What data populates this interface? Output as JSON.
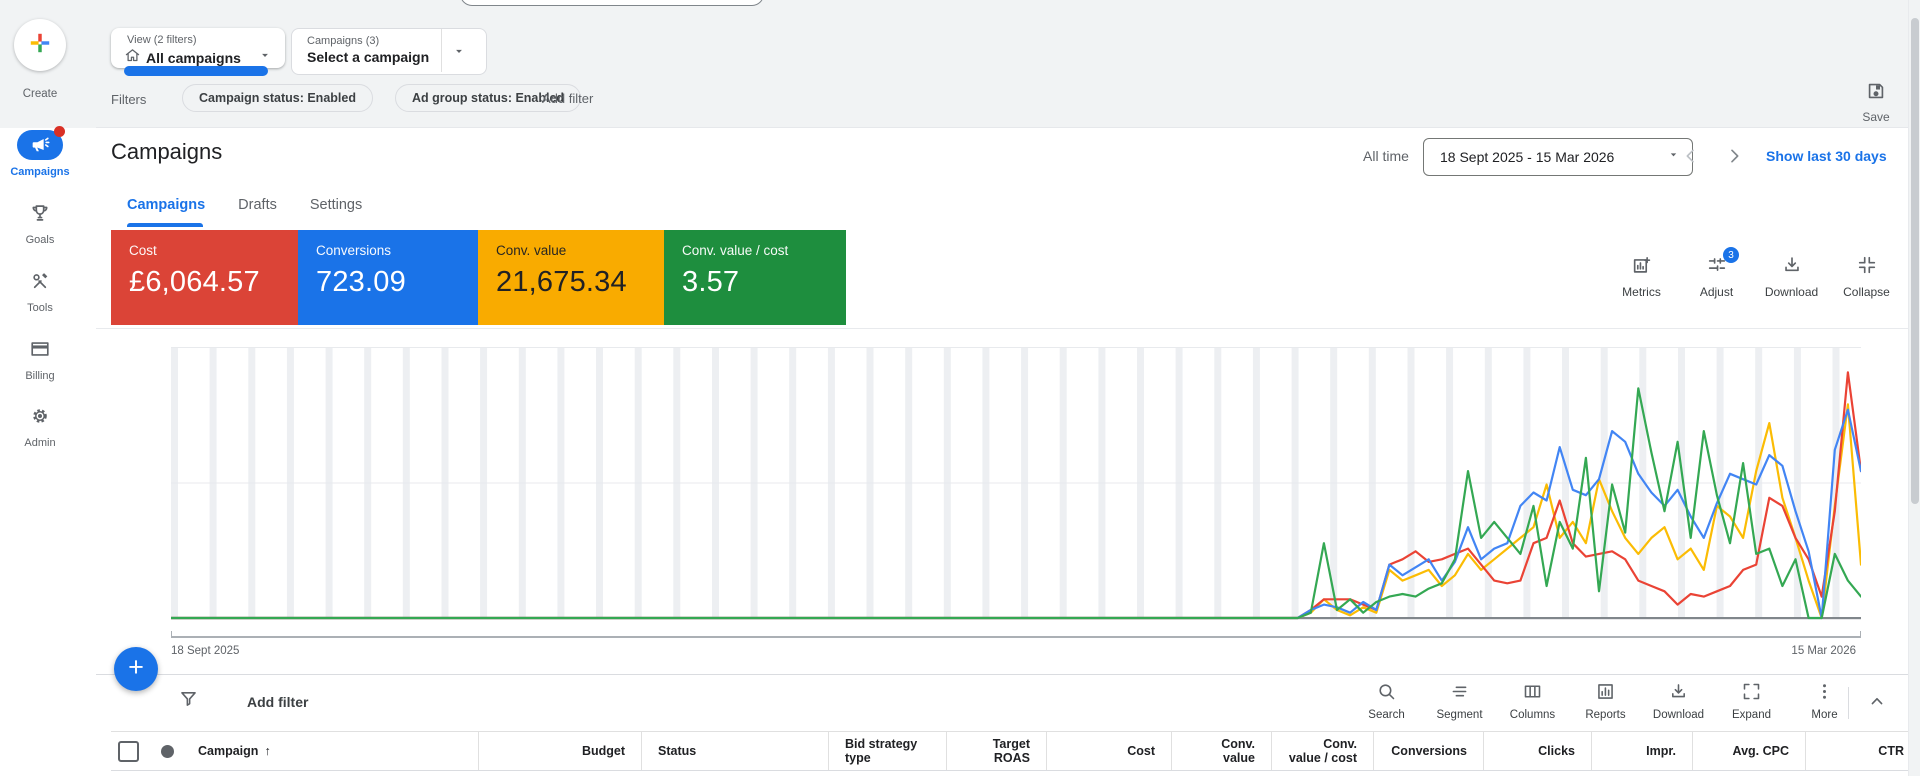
{
  "top_bar": {
    "save": {
      "label": "Save"
    }
  },
  "selectors": {
    "view": {
      "caption": "View (2 filters)",
      "value": "All campaigns",
      "icon": "home"
    },
    "campaign": {
      "caption": "Campaigns (3)",
      "value": "Select a campaign"
    }
  },
  "filter_bar": {
    "label": "Filters",
    "chips": [
      "Campaign status: Enabled",
      "Ad group status: Enabled"
    ],
    "add_filter": "Add filter"
  },
  "sidebar": {
    "create": "Create",
    "items": [
      {
        "label": "Campaigns",
        "icon": "megaphone",
        "active": true,
        "notification": true
      },
      {
        "label": "Goals",
        "icon": "trophy",
        "active": false,
        "notification": false
      },
      {
        "label": "Tools",
        "icon": "tools",
        "active": false,
        "notification": false
      },
      {
        "label": "Billing",
        "icon": "card",
        "active": false,
        "notification": false
      },
      {
        "label": "Admin",
        "icon": "gear",
        "active": false,
        "notification": false
      }
    ]
  },
  "page": {
    "title": "Campaigns",
    "tabs": [
      {
        "label": "Campaigns",
        "active": true
      },
      {
        "label": "Drafts",
        "active": false
      },
      {
        "label": "Settings",
        "active": false
      }
    ],
    "date_bar": {
      "scope": "All time",
      "range": "18 Sept 2025 - 15 Mar 2026",
      "link": "Show last 30 days"
    }
  },
  "scorecards": [
    {
      "label": "Cost",
      "value": "£6,064.57",
      "bg": "#DB4437",
      "fg": "#FFFFFF"
    },
    {
      "label": "Conversions",
      "value": "723.09",
      "bg": "#1A73E8",
      "fg": "#FFFFFF"
    },
    {
      "label": "Conv. value",
      "value": "21,675.34",
      "bg": "#F9AB00",
      "fg": "#202124"
    },
    {
      "label": "Conv. value / cost",
      "value": "3.57",
      "bg": "#1E8E3E",
      "fg": "#FFFFFF"
    }
  ],
  "chart_toolbar": [
    {
      "label": "Metrics",
      "icon": "metrics",
      "badge": ""
    },
    {
      "label": "Adjust",
      "icon": "adjust",
      "badge": "3"
    },
    {
      "label": "Download",
      "icon": "download",
      "badge": ""
    },
    {
      "label": "Collapse",
      "icon": "collapse",
      "badge": ""
    }
  ],
  "chart_data": {
    "type": "line",
    "x_start_label": "18 Sept 2025",
    "x_end_label": "15 Mar 2026",
    "ylim": [
      0,
      100
    ],
    "grid": "vertical-bands",
    "legend": "none",
    "total_points": 130,
    "leading_zeros": 86,
    "series": [
      {
        "name": "Conv. value",
        "color": "#FBBC04",
        "values": [
          0,
          2,
          7,
          3,
          1,
          4,
          2,
          18,
          14,
          16,
          18,
          12,
          16,
          24,
          18,
          22,
          26,
          30,
          34,
          50,
          30,
          36,
          28,
          52,
          40,
          30,
          24,
          30,
          34,
          22,
          26,
          18,
          42,
          38,
          30,
          55,
          73,
          45,
          30,
          14,
          0,
          42,
          80,
          20
        ]
      },
      {
        "name": "Cost",
        "color": "#EA4335",
        "values": [
          0,
          3,
          7,
          7,
          7,
          5,
          3,
          20,
          22,
          25,
          21,
          22,
          24,
          26,
          20,
          14,
          13,
          14,
          28,
          30,
          44,
          28,
          23,
          24,
          25,
          22,
          14,
          12,
          10,
          5,
          9,
          8,
          10,
          12,
          18,
          20,
          45,
          42,
          30,
          22,
          8,
          40,
          92,
          55
        ]
      },
      {
        "name": "Conversions",
        "color": "#4285F4",
        "values": [
          0,
          3,
          5,
          4,
          2,
          6,
          3,
          20,
          16,
          19,
          22,
          14,
          21,
          34,
          22,
          26,
          28,
          42,
          47,
          44,
          64,
          48,
          46,
          52,
          70,
          66,
          54,
          47,
          42,
          48,
          38,
          30,
          43,
          54,
          52,
          50,
          61,
          57,
          40,
          25,
          0,
          63,
          78,
          55
        ]
      },
      {
        "name": "Conv. value / cost",
        "color": "#34A853",
        "values": [
          0,
          2,
          28,
          3,
          7,
          2,
          6,
          8,
          9,
          8,
          11,
          13,
          22,
          55,
          30,
          36,
          30,
          24,
          42,
          12,
          36,
          26,
          60,
          10,
          50,
          32,
          86,
          62,
          40,
          66,
          30,
          70,
          46,
          28,
          58,
          24,
          26,
          12,
          22,
          0,
          0,
          24,
          14,
          8
        ]
      }
    ]
  },
  "table_toolbar": {
    "add_filter": "Add filter",
    "tools": [
      {
        "label": "Search",
        "icon": "search"
      },
      {
        "label": "Segment",
        "icon": "segment"
      },
      {
        "label": "Columns",
        "icon": "columns"
      },
      {
        "label": "Reports",
        "icon": "reports"
      },
      {
        "label": "Download",
        "icon": "download"
      },
      {
        "label": "Expand",
        "icon": "expand"
      },
      {
        "label": "More",
        "icon": "more"
      }
    ]
  },
  "table": {
    "sort_indicator": "↑",
    "columns": [
      {
        "label": "Campaign",
        "align": "left",
        "sort": "asc"
      },
      {
        "label": "Budget",
        "align": "right"
      },
      {
        "label": "Status",
        "align": "left"
      },
      {
        "label": "Bid strategy type",
        "align": "left"
      },
      {
        "label": "Target ROAS",
        "align": "right"
      },
      {
        "label": "Cost",
        "align": "right"
      },
      {
        "label": "Conv. value",
        "align": "right"
      },
      {
        "label": "Conv. value / cost",
        "align": "right"
      },
      {
        "label": "Conversions",
        "align": "right"
      },
      {
        "label": "Clicks",
        "align": "right"
      },
      {
        "label": "Impr.",
        "align": "right"
      },
      {
        "label": "Avg. CPC",
        "align": "right"
      },
      {
        "label": "CTR",
        "align": "right"
      }
    ]
  },
  "colors": {
    "accent": "#1A73E8",
    "grey_text": "#5F6368",
    "grid_band": "#EDEFF2",
    "baseline": "#80868B"
  }
}
